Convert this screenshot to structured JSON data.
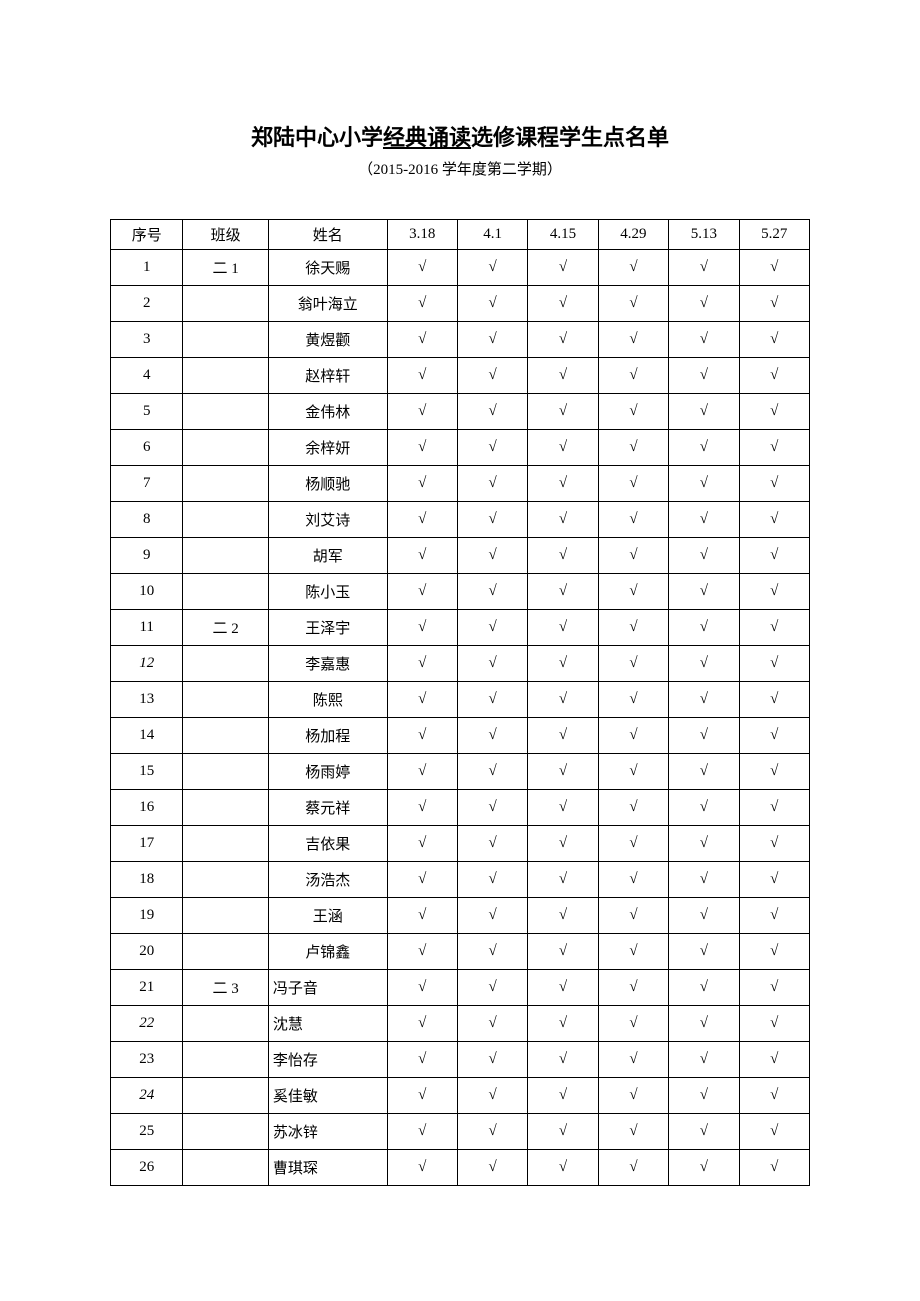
{
  "title": {
    "pre": "郑陆中心小学",
    "underlined": "经典诵读",
    "post": "选修课程学生点名单"
  },
  "subtitle": "（2015-2016 学年度第二学期）",
  "headers": {
    "seq": "序号",
    "class": "班级",
    "name": "姓名",
    "dates": [
      "3.18",
      "4.1",
      "4.15",
      "4.29",
      "5.13",
      "5.27"
    ]
  },
  "mark": "√",
  "rows": [
    {
      "seq": "1",
      "class": "二 1",
      "name": "徐天赐",
      "marks": [
        true,
        true,
        true,
        true,
        true,
        true
      ]
    },
    {
      "seq": "2",
      "class": "",
      "name": "翁叶海立",
      "marks": [
        true,
        true,
        true,
        true,
        true,
        true
      ]
    },
    {
      "seq": "3",
      "class": "",
      "name": "黄煜颧",
      "marks": [
        true,
        true,
        true,
        true,
        true,
        true
      ]
    },
    {
      "seq": "4",
      "class": "",
      "name": "赵梓轩",
      "marks": [
        true,
        true,
        true,
        true,
        true,
        true
      ]
    },
    {
      "seq": "5",
      "class": "",
      "name": "金伟林",
      "marks": [
        true,
        true,
        true,
        true,
        true,
        true
      ]
    },
    {
      "seq": "6",
      "class": "",
      "name": "余梓妍",
      "marks": [
        true,
        true,
        true,
        true,
        true,
        true
      ]
    },
    {
      "seq": "7",
      "class": "",
      "name": "杨顺驰",
      "marks": [
        true,
        true,
        true,
        true,
        true,
        true
      ]
    },
    {
      "seq": "8",
      "class": "",
      "name": "刘艾诗",
      "marks": [
        true,
        true,
        true,
        true,
        true,
        true
      ]
    },
    {
      "seq": "9",
      "class": "",
      "name": "胡军",
      "marks": [
        true,
        true,
        true,
        true,
        true,
        true
      ]
    },
    {
      "seq": "10",
      "class": "",
      "name": "陈小玉",
      "marks": [
        true,
        true,
        true,
        true,
        true,
        true
      ]
    },
    {
      "seq": "11",
      "class": "二 2",
      "name": "王泽宇",
      "marks": [
        true,
        true,
        true,
        true,
        true,
        true
      ]
    },
    {
      "seq": "12",
      "seqItalic": true,
      "class": "",
      "name": "李嘉惠",
      "marks": [
        true,
        true,
        true,
        true,
        true,
        true
      ]
    },
    {
      "seq": "13",
      "class": "",
      "name": "陈熙",
      "marks": [
        true,
        true,
        true,
        true,
        true,
        true
      ]
    },
    {
      "seq": "14",
      "class": "",
      "name": "杨加程",
      "marks": [
        true,
        true,
        true,
        true,
        true,
        true
      ]
    },
    {
      "seq": "15",
      "class": "",
      "name": "杨雨婷",
      "marks": [
        true,
        true,
        true,
        true,
        true,
        true
      ]
    },
    {
      "seq": "16",
      "class": "",
      "name": "蔡元祥",
      "marks": [
        true,
        true,
        true,
        true,
        true,
        true
      ]
    },
    {
      "seq": "17",
      "class": "",
      "name": "吉依果",
      "marks": [
        true,
        true,
        true,
        true,
        true,
        true
      ]
    },
    {
      "seq": "18",
      "class": "",
      "name": "汤浩杰",
      "marks": [
        true,
        true,
        true,
        true,
        true,
        true
      ]
    },
    {
      "seq": "19",
      "class": "",
      "name": "王涵",
      "marks": [
        true,
        true,
        true,
        true,
        true,
        true
      ]
    },
    {
      "seq": "20",
      "class": "",
      "name": "卢锦鑫",
      "marks": [
        true,
        true,
        true,
        true,
        true,
        true
      ]
    },
    {
      "seq": "21",
      "class": "二 3",
      "name": "冯子音",
      "nameLeft": true,
      "marks": [
        true,
        true,
        true,
        true,
        true,
        true
      ]
    },
    {
      "seq": "22",
      "seqItalic": true,
      "class": "",
      "name": "沈慧",
      "nameLeft": true,
      "marks": [
        true,
        true,
        true,
        true,
        true,
        true
      ]
    },
    {
      "seq": "23",
      "class": "",
      "name": "李怡存",
      "nameLeft": true,
      "marks": [
        true,
        true,
        true,
        true,
        true,
        true
      ]
    },
    {
      "seq": "24",
      "seqItalic": true,
      "class": "",
      "name": "奚佳敏",
      "nameLeft": true,
      "marks": [
        true,
        true,
        true,
        true,
        true,
        true
      ]
    },
    {
      "seq": "25",
      "class": "",
      "name": "苏冰锌",
      "nameLeft": true,
      "marks": [
        true,
        true,
        true,
        true,
        true,
        true
      ]
    },
    {
      "seq": "26",
      "class": "",
      "name": "曹琪琛",
      "nameLeft": true,
      "marks": [
        true,
        true,
        true,
        true,
        true,
        true
      ]
    }
  ],
  "styles": {
    "background_color": "#ffffff",
    "text_color": "#000000",
    "border_color": "#000000",
    "title_fontsize": 22,
    "subtitle_fontsize": 15,
    "cell_fontsize": 15,
    "header_row_height": 30,
    "body_row_height": 36,
    "col_widths": {
      "seq": 72,
      "class": 85,
      "name": 118,
      "date": 70
    }
  }
}
